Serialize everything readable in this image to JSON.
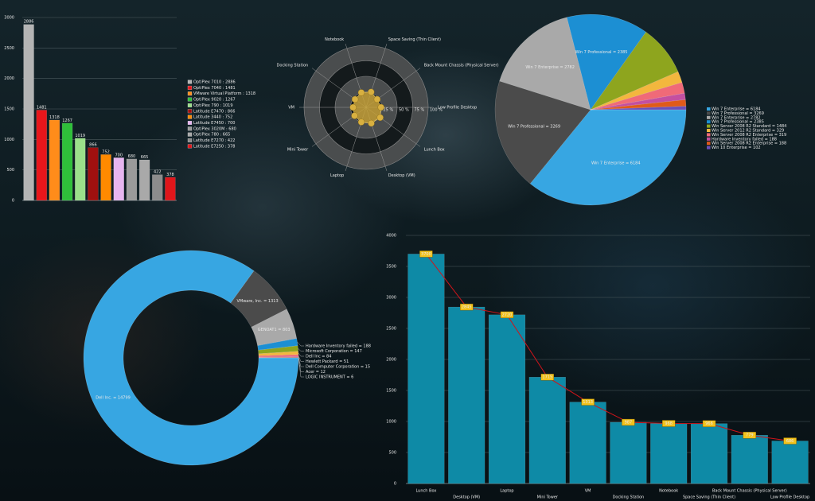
{
  "chart_data": [
    {
      "type": "bar",
      "categories": [
        "OptiPlex 7010 : 2886",
        "OptiPlex 7040 : 1481",
        "VMware Virtual Platform : 1318",
        "OptiPlex 9020 : 1267",
        "OptiPlex 790 : 1019",
        "Latitude E7470 : 866",
        "Latitude 3440 : 752",
        "Latitude E7450 : 700",
        "OptiPlex 3020M : 680",
        "OptiPlex 780 : 665",
        "Latitude E7270 : 422",
        "Latitude E7250 : 378"
      ],
      "values": [
        2886,
        1481,
        1318,
        1267,
        1019,
        866,
        752,
        700,
        680,
        665,
        422,
        378
      ],
      "colors": [
        "#b4b4b4",
        "#e8161b",
        "#ff8c1a",
        "#2fbf3a",
        "#9be08a",
        "#a0100f",
        "#ff8a00",
        "#e7b5f0",
        "#9a9a9a",
        "#a9a9a9",
        "#8c8c8c",
        "#e0161b"
      ],
      "ylim": [
        0,
        3000
      ],
      "yticks": [
        0,
        500,
        1000,
        1500,
        2000,
        2500,
        3000
      ],
      "grid": true
    },
    {
      "type": "radar",
      "categories": [
        "Space Saving (Thin Client)",
        "Back Mount Chassis (Physical Server)",
        "Low Profile Desktop",
        "Lunch Box",
        "Desktop (VM)",
        "Laptop",
        "Mini Tower",
        "VM",
        "Docking Station",
        "Notebook"
      ],
      "values": [
        26,
        22,
        24,
        28,
        27,
        25,
        23,
        21,
        22,
        25
      ],
      "color": "#c9a43c",
      "rlim": [
        0,
        100
      ],
      "rticks": [
        {
          "value": 25,
          "label": "25 %"
        },
        {
          "value": 50,
          "label": "50 %"
        },
        {
          "value": 75,
          "label": "75 %"
        },
        {
          "value": 100,
          "label": "100 %"
        }
      ]
    },
    {
      "type": "pie",
      "labels": [
        "Win 7 Enterprise = 6184",
        "Win 7 Professional = 3269",
        "Win 7 Enterprise = 2782",
        "Win 7 Professional = 2385",
        "Win Server 2008 R2 Standard = 1484",
        "Win Server 2012 R2 Standard = 329",
        "Win Server 2008 R2 Enterprise = 319",
        "Hardware Inventory failed = 188",
        "Win Server 2008 R2 Enterprise = 188",
        "Win 10 Enterprise = 102"
      ],
      "values": [
        6184,
        3269,
        2782,
        2385,
        1484,
        329,
        319,
        188,
        188,
        102
      ],
      "colors": [
        "#37a6e2",
        "#4b4b4b",
        "#a9a9a9",
        "#1c8fd3",
        "#8ea51e",
        "#f3b73e",
        "#f06a78",
        "#c44fa0",
        "#e05a1a",
        "#6b4fb8"
      ]
    },
    {
      "type": "donut",
      "labels": [
        "Dell Inc. = 14799",
        "VMware, Inc. = 1313",
        "GENOAT1 = 803",
        "Hardware Inventory failed = 188",
        "Microsoft Corporation = 147",
        "Dell Inc = 84",
        "Hewlett Packard = 51",
        "Dell Computer Corporation = 15",
        "Acer = 12",
        "LOGIC INSTRUMENT = 6"
      ],
      "values": [
        14799,
        1313,
        803,
        188,
        147,
        84,
        51,
        15,
        12,
        6
      ],
      "colors": [
        "#37a6e2",
        "#4b4b4b",
        "#a9a9a9",
        "#1c8fd3",
        "#8ea51e",
        "#f3b73e",
        "#f06a78",
        "#c44fa0",
        "#e05a1a",
        "#6b4fb8"
      ]
    },
    {
      "type": "bar",
      "categories": [
        "Lunch Box",
        "Desktop (VM)",
        "Laptop",
        "Mini Tower",
        "VM",
        "Docking Station",
        "Notebook",
        "Space Saving (Thin Client)",
        "Back Mount Chassis (Physical Server)",
        "Low Profile Desktop"
      ],
      "values": [
        3700,
        2845,
        2720,
        1715,
        1313,
        987,
        968,
        966,
        779,
        686
      ],
      "color": "#0e8aa6",
      "line_color": "#d0141a",
      "label_color": "#f2c21c",
      "ylim": [
        0,
        4000
      ],
      "yticks": [
        0,
        500,
        1000,
        1500,
        2000,
        2500,
        3000,
        3500,
        4000
      ],
      "grid": true
    }
  ]
}
